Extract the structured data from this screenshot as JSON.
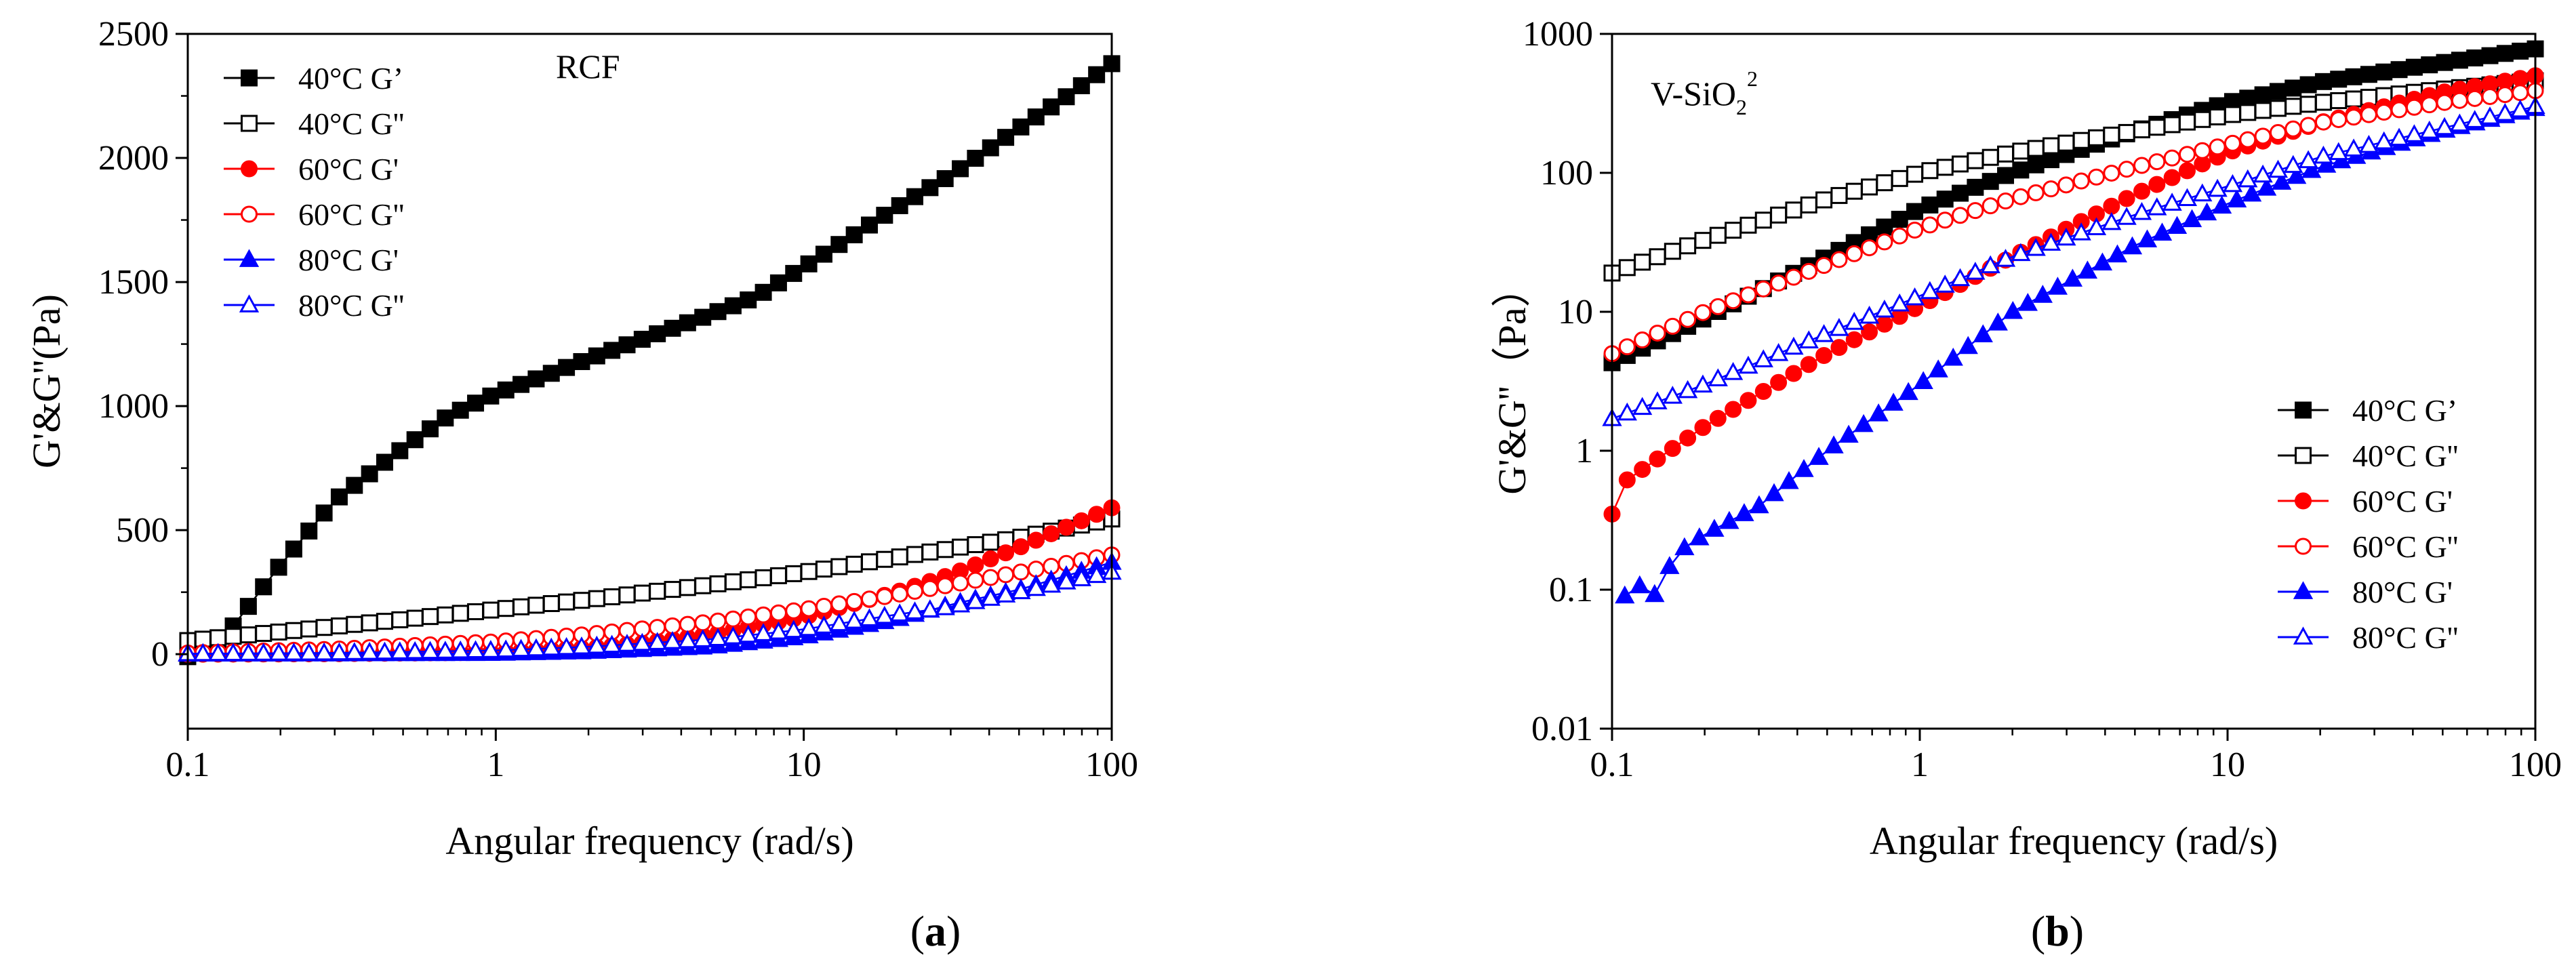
{
  "chart_data": [
    {
      "type": "scatter",
      "panel_label": "a",
      "annotation": "RCF",
      "title": "",
      "xlabel": "Angular frequency (rad/s)",
      "ylabel": "G'&G''(Pa)",
      "xscale": "log",
      "yscale": "linear",
      "xlim": [
        0.1,
        100
      ],
      "ylim": [
        -300,
        2500
      ],
      "xticks": [
        0.1,
        1,
        10,
        100
      ],
      "xtick_labels": [
        "0.1",
        "1",
        "10",
        "100"
      ],
      "yticks": [
        0,
        500,
        1000,
        1500,
        2000,
        2500
      ],
      "ytick_labels": [
        "0",
        "500",
        "1000",
        "1500",
        "2000",
        "2500"
      ],
      "legend_position": "top-left",
      "series": [
        {
          "name": "40°C G’",
          "label_prefix": "40°C ",
          "label_suffix": "G’",
          "color": "#000000",
          "marker": "square",
          "filled": true,
          "x": [
            0.1,
            0.13,
            0.2,
            0.3,
            0.5,
            0.7,
            1,
            1.5,
            2,
            3,
            5,
            7,
            10,
            15,
            20,
            30,
            50,
            70,
            100
          ],
          "y": [
            -10,
            60,
            360,
            620,
            830,
            960,
            1050,
            1130,
            1190,
            1270,
            1370,
            1440,
            1560,
            1700,
            1800,
            1930,
            2120,
            2240,
            2380
          ]
        },
        {
          "name": "40°C G''",
          "label_prefix": "40°C  ",
          "label_suffix": "G''",
          "color": "#000000",
          "marker": "square",
          "filled": false,
          "x": [
            0.1,
            0.2,
            0.5,
            1,
            2,
            5,
            10,
            20,
            50,
            100
          ],
          "y": [
            55,
            90,
            140,
            180,
            220,
            280,
            330,
            390,
            470,
            545
          ]
        },
        {
          "name": "60°C G'",
          "label_prefix": "60°C  ",
          "label_suffix": "G'",
          "color": "#ff0000",
          "marker": "circle",
          "filled": true,
          "x": [
            0.1,
            0.3,
            1,
            2,
            3,
            5,
            10,
            20,
            30,
            50,
            100
          ],
          "y": [
            0,
            2,
            8,
            25,
            45,
            80,
            150,
            250,
            320,
            430,
            590
          ]
        },
        {
          "name": "60°C G''",
          "label_prefix": "60°C  ",
          "label_suffix": "G''",
          "color": "#ff0000",
          "marker": "circle",
          "filled": false,
          "x": [
            0.1,
            0.3,
            1,
            2,
            5,
            10,
            20,
            30,
            50,
            100
          ],
          "y": [
            5,
            20,
            50,
            80,
            130,
            180,
            240,
            280,
            330,
            400
          ]
        },
        {
          "name": "80°C G'",
          "label_prefix": "80°C  ",
          "label_suffix": "G'",
          "color": "#0000ff",
          "marker": "triangle",
          "filled": true,
          "x": [
            0.1,
            0.3,
            1,
            2,
            5,
            10,
            20,
            30,
            50,
            100
          ],
          "y": [
            0,
            1,
            3,
            10,
            30,
            70,
            140,
            200,
            260,
            370
          ]
        },
        {
          "name": "80°C G''",
          "label_prefix": "80°C  ",
          "label_suffix": "G''",
          "color": "#0000ff",
          "marker": "triangle",
          "filled": false,
          "x": [
            0.1,
            0.3,
            1,
            2,
            5,
            10,
            20,
            30,
            50,
            100
          ],
          "y": [
            2,
            5,
            15,
            30,
            60,
            100,
            160,
            190,
            250,
            330
          ]
        }
      ]
    },
    {
      "type": "scatter",
      "panel_label": "b",
      "annotation": "V-SiO",
      "annotation_sub": "2",
      "annotation_sup": "2",
      "title": "",
      "xlabel": "Angular frequency (rad/s)",
      "ylabel": "G'&G''（Pa）",
      "xscale": "log",
      "yscale": "log",
      "xlim": [
        0.1,
        100
      ],
      "ylim": [
        0.01,
        1000
      ],
      "xticks": [
        0.1,
        1,
        10,
        100
      ],
      "xtick_labels": [
        "0.1",
        "1",
        "10",
        "100"
      ],
      "yticks": [
        0.01,
        0.1,
        1,
        10,
        100,
        1000
      ],
      "ytick_labels": [
        "0.01",
        "0.1",
        "1",
        "10",
        "100",
        "1000"
      ],
      "legend_position": "bottom-right",
      "series": [
        {
          "name": "40°C G’",
          "label_prefix": "40°C ",
          "label_suffix": "G’",
          "color": "#000000",
          "marker": "square",
          "filled": true,
          "x": [
            0.1,
            0.2,
            0.5,
            1,
            2,
            5,
            10,
            20,
            50,
            100
          ],
          "y": [
            4.3,
            9,
            25,
            55,
            100,
            200,
            320,
            450,
            620,
            780
          ]
        },
        {
          "name": "40°C G''",
          "label_prefix": "40°C  ",
          "label_suffix": "G''",
          "color": "#000000",
          "marker": "square",
          "filled": false,
          "x": [
            0.1,
            0.2,
            0.5,
            1,
            2,
            5,
            10,
            20,
            50,
            100
          ],
          "y": [
            19,
            33,
            65,
            100,
            140,
            200,
            260,
            320,
            400,
            460
          ]
        },
        {
          "name": "60°C G'",
          "label_prefix": "60°C  ",
          "label_suffix": "G'",
          "color": "#ff0000",
          "marker": "circle",
          "filled": true,
          "x": [
            0.1,
            0.11,
            0.2,
            0.5,
            1,
            2,
            5,
            10,
            20,
            50,
            100
          ],
          "y": [
            0.35,
            0.6,
            1.5,
            5,
            11,
            25,
            70,
            140,
            230,
            380,
            500
          ]
        },
        {
          "name": "60°C G''",
          "label_prefix": "60°C  ",
          "label_suffix": "G''",
          "color": "#ff0000",
          "marker": "circle",
          "filled": false,
          "x": [
            0.1,
            0.2,
            0.5,
            1,
            2,
            5,
            10,
            20,
            50,
            100
          ],
          "y": [
            5,
            10,
            22,
            40,
            65,
            110,
            160,
            230,
            320,
            390
          ]
        },
        {
          "name": "80°C G'",
          "label_prefix": "80°C  ",
          "label_suffix": "G'",
          "color": "#0000ff",
          "marker": "triangle",
          "filled": true,
          "x": [
            0.11,
            0.12,
            0.14,
            0.16,
            0.2,
            0.3,
            0.5,
            1,
            2,
            5,
            10,
            20,
            50,
            100
          ],
          "y": [
            0.09,
            0.11,
            0.09,
            0.18,
            0.25,
            0.4,
            1,
            3,
            10,
            30,
            60,
            110,
            200,
            290
          ]
        },
        {
          "name": "80°C G''",
          "label_prefix": "80°C  ",
          "label_suffix": "G''",
          "color": "#0000ff",
          "marker": "triangle",
          "filled": false,
          "x": [
            0.1,
            0.2,
            0.5,
            1,
            2,
            5,
            10,
            20,
            50,
            100
          ],
          "y": [
            1.7,
            3,
            7,
            13,
            25,
            50,
            80,
            130,
            210,
            300
          ]
        }
      ]
    }
  ]
}
